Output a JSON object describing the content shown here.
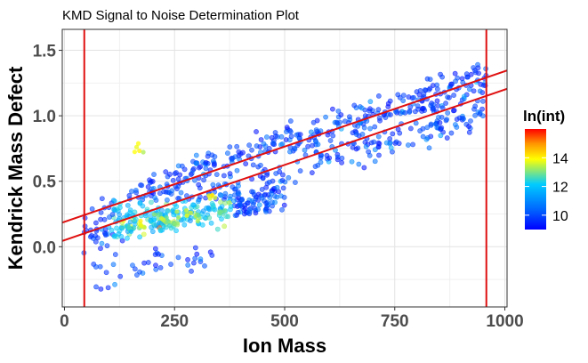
{
  "chart_data": {
    "type": "scatter",
    "title": "KMD Signal to Noise Determination Plot",
    "xlabel": "Ion Mass",
    "ylabel": "Kendrick Mass Defect",
    "xlim": [
      -5,
      1005
    ],
    "ylim": [
      -0.46,
      1.66
    ],
    "x_ticks": [
      0,
      250,
      500,
      750,
      1000
    ],
    "x_tick_labels": [
      "0",
      "250",
      "500",
      "750",
      "1000"
    ],
    "y_ticks": [
      0.0,
      0.5,
      1.0,
      1.5
    ],
    "y_tick_labels": [
      "0.0",
      "0.5",
      "1.0",
      "1.5"
    ],
    "grid": true,
    "legend": {
      "title": "ln(int)",
      "placement": "right",
      "range": [
        9,
        16
      ],
      "ticks": [
        10,
        12,
        14
      ],
      "tick_labels": [
        "10",
        "12",
        "14"
      ],
      "colors": [
        "#0000ff",
        "#0066ff",
        "#00ccff",
        "#ffff00",
        "#ff9900",
        "#ff0000"
      ]
    },
    "lines": [
      {
        "name": "vertical-min",
        "type": "vline",
        "x": 45,
        "color": "#e01010"
      },
      {
        "name": "vertical-max",
        "type": "vline",
        "x": 958,
        "color": "#e01010"
      },
      {
        "name": "upper-limit",
        "type": "abline",
        "slope": 0.00115,
        "intercept": 0.19,
        "color": "#e01010"
      },
      {
        "name": "lower-limit",
        "type": "abline",
        "slope": 0.00115,
        "intercept": 0.05,
        "color": "#e01010"
      }
    ],
    "series": [
      {
        "name": "series-1",
        "x_range": [
          42,
          960
        ],
        "kmd_start": 0.05,
        "slope": 0.00115,
        "spread": 0.06,
        "curve": -1e-07,
        "n": 260
      },
      {
        "name": "series-2",
        "x_range": [
          45,
          960
        ],
        "kmd_start": 0.22,
        "slope": 0.00135,
        "spread": 0.05,
        "curve": -3e-07,
        "n": 220
      },
      {
        "name": "series-3",
        "x_range": [
          150,
          958
        ],
        "kmd_start": 0.4,
        "slope": 0.0013,
        "spread": 0.05,
        "curve": -2e-07,
        "n": 160
      },
      {
        "name": "series-4",
        "x_range": [
          100,
          500
        ],
        "kmd_start": 0.13,
        "slope": 0.0006,
        "spread": 0.05,
        "curve": 0,
        "n": 200
      },
      {
        "name": "series-5",
        "x_range": [
          60,
          350
        ],
        "kmd_start": -0.2,
        "slope": 0.0005,
        "spread": 0.06,
        "curve": 0,
        "n": 40
      }
    ],
    "intensity_hotspots": [
      {
        "x": 230,
        "kmd": 0.2,
        "ln_int": 13.4
      },
      {
        "x": 175,
        "kmd": 0.17,
        "ln_int": 13.6
      },
      {
        "x": 205,
        "kmd": 0.23,
        "ln_int": 13.2
      },
      {
        "x": 275,
        "kmd": 0.26,
        "ln_int": 13.5
      },
      {
        "x": 310,
        "kmd": 0.24,
        "ln_int": 13.1
      },
      {
        "x": 340,
        "kmd": 0.39,
        "ln_int": 14.1
      },
      {
        "x": 175,
        "kmd": 0.74,
        "ln_int": 13.8
      },
      {
        "x": 150,
        "kmd": 0.13,
        "ln_int": 12.6
      },
      {
        "x": 250,
        "kmd": 0.18,
        "ln_int": 12.9
      },
      {
        "x": 355,
        "kmd": 0.28,
        "ln_int": 12.8
      }
    ]
  }
}
